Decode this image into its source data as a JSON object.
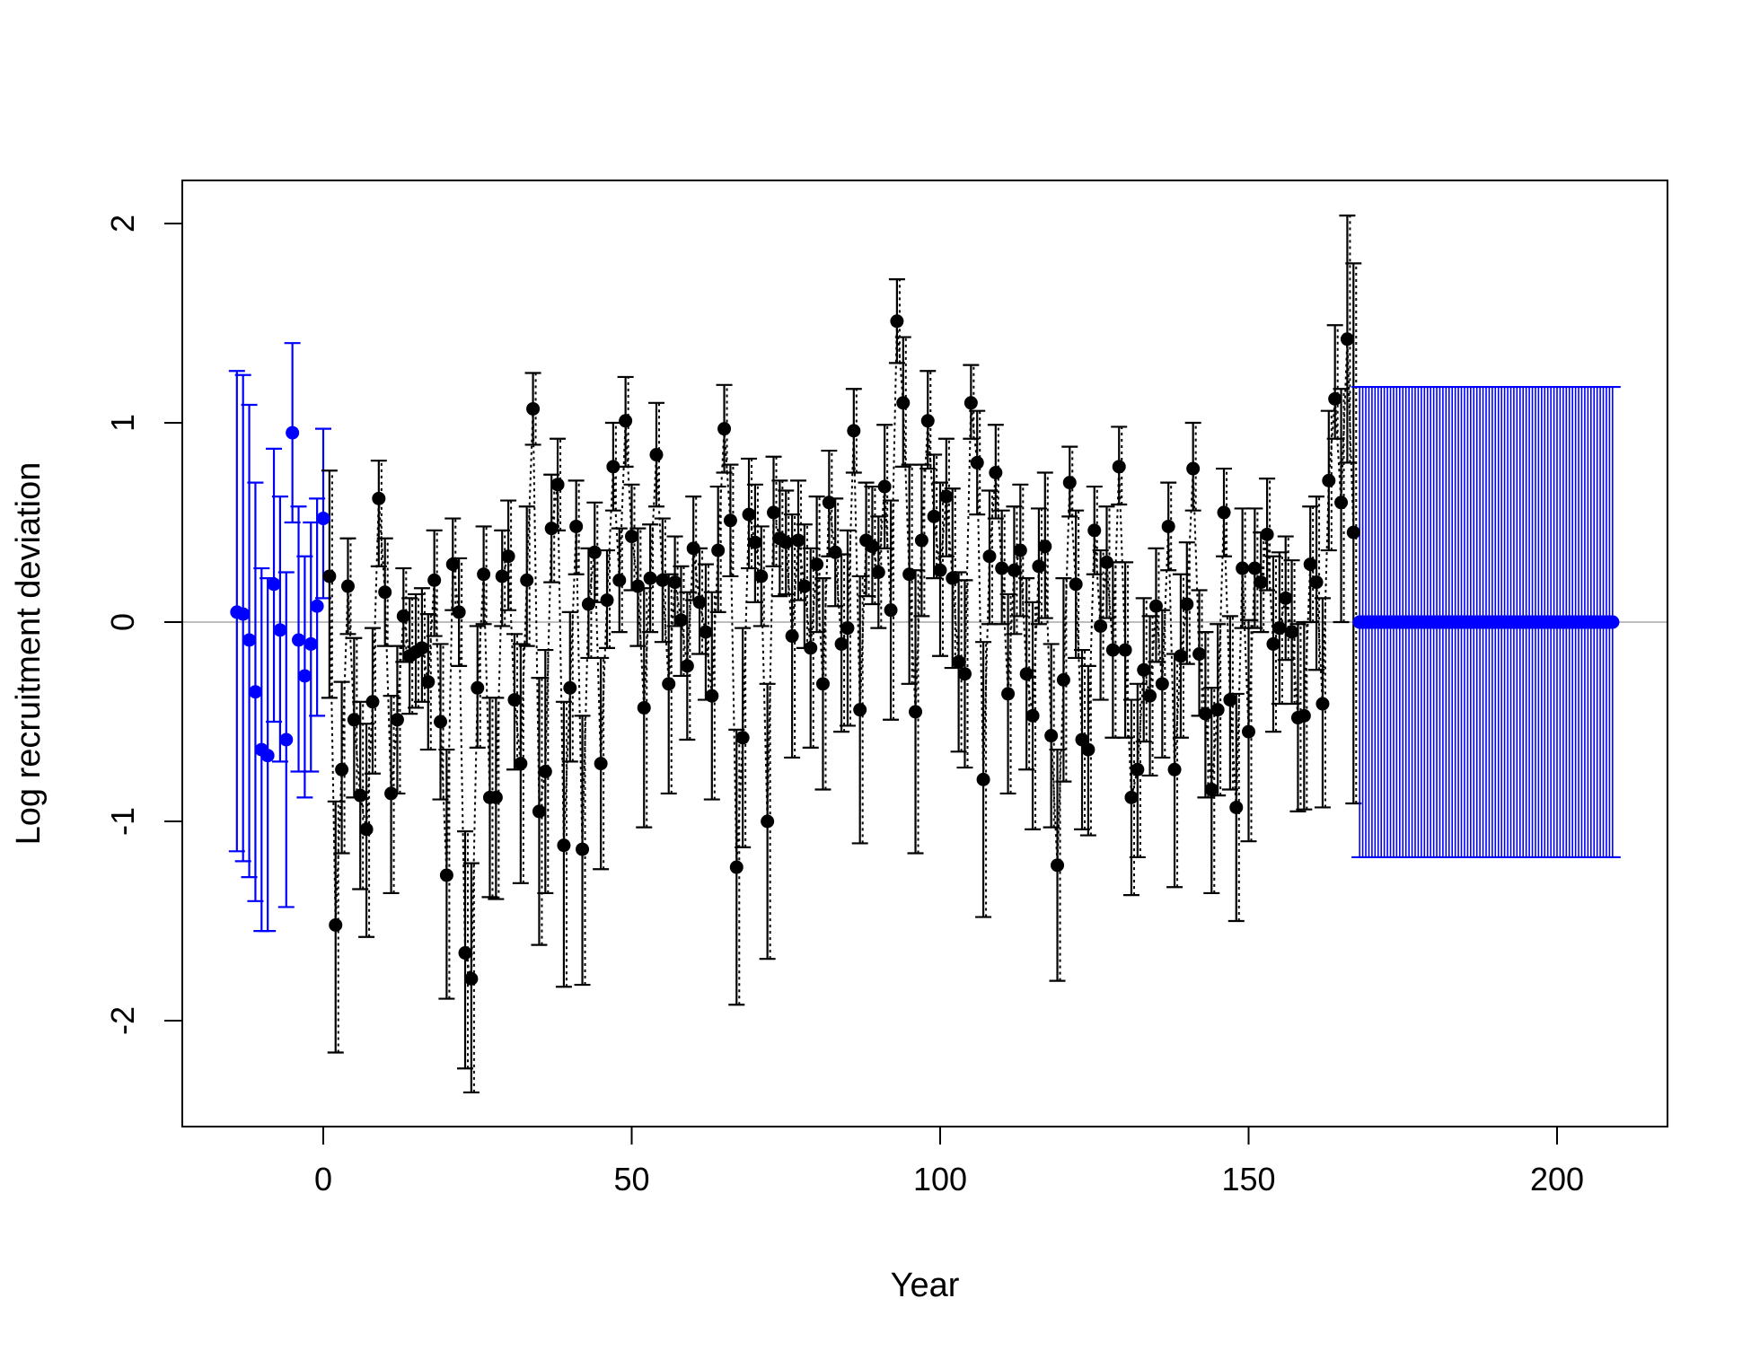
{
  "chart_data": {
    "type": "scatter",
    "title": "",
    "xlabel": "Year",
    "ylabel": "Log recruitment deviation",
    "xlim": [
      -23,
      218
    ],
    "ylim": [
      -2.5,
      2.2
    ],
    "xticks": [
      0,
      50,
      100,
      150,
      200
    ],
    "yticks": [
      -2,
      -1,
      0,
      1,
      2
    ],
    "xtick_labels": [
      "0",
      "50",
      "100",
      "150",
      "200"
    ],
    "ytick_labels": [
      "-2",
      "-1",
      "0",
      "1",
      "2"
    ],
    "grid": false,
    "legend": "none",
    "reference_line": {
      "y": 0,
      "color": "#bdbdbd"
    },
    "error_bars": "point estimate with upper and lower interval, capped",
    "series": [
      {
        "role": "early deviations",
        "color": "#0000ff",
        "x": [
          -14,
          -13,
          -12,
          -11,
          -10,
          -9,
          -8,
          -7,
          -6,
          -5,
          -4,
          -3,
          -2,
          -1,
          0
        ],
        "y": [
          0.05,
          0.04,
          -0.09,
          -0.35,
          -0.64,
          -0.67,
          0.19,
          -0.04,
          -0.59,
          0.95,
          -0.09,
          -0.27,
          -0.11,
          0.08,
          0.52
        ],
        "lower": [
          -1.15,
          -1.2,
          -1.28,
          -1.4,
          -1.55,
          -1.55,
          -0.5,
          -0.7,
          -1.43,
          0.5,
          -0.75,
          -0.88,
          -0.75,
          -0.47,
          0.12
        ],
        "upper": [
          1.26,
          1.24,
          1.09,
          0.7,
          0.27,
          0.22,
          0.87,
          0.63,
          0.25,
          1.4,
          0.58,
          0.33,
          0.5,
          0.62,
          0.97
        ]
      },
      {
        "role": "main deviations",
        "color": "#000000",
        "connect_dotted": true,
        "x": [
          1,
          2,
          3,
          4,
          5,
          6,
          7,
          8,
          9,
          10,
          11,
          12,
          13,
          14,
          15,
          16,
          17,
          18,
          19,
          20,
          21,
          22,
          23,
          24,
          25,
          26,
          27,
          28,
          29,
          30,
          31,
          32,
          33,
          34,
          35,
          36,
          37,
          38,
          39,
          40,
          41,
          42,
          43,
          44,
          45,
          46,
          47,
          48,
          49,
          50,
          51,
          52,
          53,
          54,
          55,
          56,
          57,
          58,
          59,
          60,
          61,
          62,
          63,
          64,
          65,
          66,
          67,
          68,
          69,
          70,
          71,
          72,
          73,
          74,
          75,
          76,
          77,
          78,
          79,
          80,
          81,
          82,
          83,
          84,
          85,
          86,
          87,
          88,
          89,
          90,
          91,
          92,
          93,
          94,
          95,
          96,
          97,
          98,
          99,
          100,
          101,
          102,
          103,
          104,
          105,
          106,
          107,
          108,
          109,
          110,
          111,
          112,
          113,
          114,
          115,
          116,
          117,
          118,
          119,
          120,
          121,
          122,
          123,
          124,
          125,
          126,
          127,
          128,
          129,
          130,
          131,
          132,
          133,
          134,
          135,
          136,
          137,
          138,
          139,
          140,
          141,
          142,
          143,
          144,
          145,
          146,
          147,
          148,
          149,
          150,
          151,
          152,
          153,
          154,
          155,
          156,
          157,
          158,
          159,
          160,
          161,
          162,
          163,
          164,
          165,
          166,
          167
        ],
        "y": [
          0.23,
          -1.52,
          -0.74,
          0.18,
          -0.49,
          -0.87,
          -1.04,
          -0.4,
          0.62,
          0.15,
          -0.86,
          -0.49,
          0.03,
          -0.17,
          -0.15,
          -0.13,
          -0.3,
          0.21,
          -0.5,
          -1.27,
          0.29,
          0.05,
          -1.66,
          -1.79,
          -0.33,
          0.24,
          -0.88,
          -0.88,
          0.23,
          0.33,
          -0.39,
          -0.71,
          0.21,
          1.07,
          -0.95,
          -0.75,
          0.47,
          0.69,
          -1.12,
          -0.33,
          0.48,
          -1.14,
          0.09,
          0.35,
          -0.71,
          0.11,
          0.78,
          0.21,
          1.01,
          0.43,
          0.18,
          -0.43,
          0.22,
          0.84,
          0.21,
          -0.31,
          0.2,
          0.01,
          -0.22,
          0.37,
          0.1,
          -0.05,
          -0.37,
          0.36,
          0.97,
          0.51,
          -1.23,
          -0.58,
          0.54,
          0.4,
          0.23,
          -1.0,
          0.55,
          0.42,
          0.4,
          -0.07,
          0.41,
          0.18,
          -0.13,
          0.29,
          -0.31,
          0.6,
          0.35,
          -0.11,
          -0.03,
          0.96,
          -0.44,
          0.41,
          0.38,
          0.25,
          0.68,
          0.06,
          1.51,
          1.1,
          0.24,
          -0.45,
          0.41,
          1.01,
          0.53,
          0.26,
          0.63,
          0.22,
          -0.2,
          -0.26,
          1.1,
          0.8,
          -0.79,
          0.33,
          0.75,
          0.27,
          -0.36,
          0.26,
          0.36,
          -0.26,
          -0.47,
          0.28,
          0.38,
          -0.57,
          -1.22,
          -0.29,
          0.7,
          0.19,
          -0.59,
          -0.64,
          0.46,
          -0.02,
          0.3,
          -0.14,
          0.78,
          -0.14,
          -0.88,
          -0.74,
          -0.24,
          -0.37,
          0.08,
          -0.31,
          0.48,
          -0.74,
          -0.17,
          0.09,
          0.77,
          -0.16,
          -0.46,
          -0.84,
          -0.44,
          0.55,
          -0.39,
          -0.93,
          0.27,
          -0.55,
          0.27,
          0.2,
          0.44,
          -0.11,
          -0.03,
          0.12,
          -0.05,
          -0.48,
          -0.47,
          0.29,
          0.2,
          -0.41,
          0.71,
          1.12,
          0.6,
          1.42,
          0.45
        ],
        "lower": [
          -0.38,
          -2.16,
          -1.16,
          -0.06,
          -0.88,
          -1.34,
          -1.58,
          -0.76,
          0.28,
          -0.12,
          -1.36,
          -0.86,
          -0.2,
          -0.46,
          -0.43,
          -0.4,
          -0.64,
          -0.07,
          -0.89,
          -1.89,
          0.06,
          -0.22,
          -2.24,
          -2.36,
          -0.63,
          -0.01,
          -1.38,
          -1.39,
          -0.02,
          0.06,
          -0.74,
          -1.31,
          -0.12,
          0.89,
          -1.62,
          -1.36,
          0.2,
          0.46,
          -1.83,
          -0.7,
          0.24,
          -1.82,
          -0.18,
          0.1,
          -1.24,
          -0.13,
          0.56,
          -0.05,
          0.78,
          0.16,
          -0.12,
          -1.03,
          -0.05,
          0.58,
          -0.1,
          -0.86,
          -0.02,
          -0.27,
          -0.59,
          0.11,
          -0.16,
          -0.39,
          -0.89,
          0.05,
          0.75,
          0.23,
          -1.92,
          -1.13,
          0.27,
          0.1,
          -0.02,
          -1.69,
          0.28,
          0.13,
          0.14,
          -0.68,
          0.11,
          -0.13,
          -0.63,
          -0.05,
          -0.84,
          0.33,
          0.08,
          -0.55,
          -0.52,
          0.75,
          -1.11,
          0.13,
          0.09,
          -0.03,
          0.37,
          -0.49,
          1.3,
          0.78,
          -0.31,
          -1.16,
          0.03,
          0.77,
          0.22,
          -0.17,
          0.33,
          -0.23,
          -0.65,
          -0.73,
          0.92,
          0.54,
          -1.48,
          -0.01,
          0.52,
          -0.01,
          -0.86,
          -0.06,
          0.03,
          -0.74,
          -1.04,
          -0.01,
          0.02,
          -1.03,
          -1.8,
          -0.8,
          0.53,
          -0.18,
          -1.04,
          -1.07,
          0.24,
          -0.39,
          0.02,
          -0.58,
          0.59,
          -0.58,
          -1.37,
          -1.18,
          -0.6,
          -0.77,
          -0.2,
          -0.68,
          0.26,
          -1.33,
          -0.58,
          -0.21,
          0.56,
          -0.47,
          -0.88,
          -1.36,
          -0.87,
          0.33,
          -0.84,
          -1.5,
          -0.03,
          -1.1,
          -0.03,
          -0.05,
          0.16,
          -0.55,
          -0.41,
          -0.19,
          -0.41,
          -0.95,
          -0.94,
          0.0,
          -0.24,
          -0.93,
          0.36,
          0.92,
          0.0,
          0.8,
          -0.91
        ],
        "upper": [
          0.76,
          -0.9,
          -0.3,
          0.42,
          -0.08,
          -0.4,
          -0.51,
          -0.03,
          0.81,
          0.42,
          -0.37,
          -0.12,
          0.27,
          0.12,
          0.14,
          0.17,
          0.04,
          0.46,
          -0.11,
          -0.64,
          0.52,
          0.32,
          -1.05,
          -1.21,
          -0.02,
          0.48,
          -0.38,
          -0.38,
          0.46,
          0.61,
          -0.06,
          -0.11,
          0.58,
          1.25,
          -0.28,
          -0.14,
          0.74,
          0.92,
          -0.4,
          0.05,
          0.71,
          -0.47,
          0.37,
          0.6,
          -0.18,
          0.36,
          1.0,
          0.47,
          1.23,
          0.69,
          0.47,
          0.17,
          0.49,
          1.1,
          0.52,
          0.24,
          0.43,
          0.28,
          0.15,
          0.63,
          0.37,
          0.29,
          0.15,
          0.68,
          1.19,
          0.79,
          -0.54,
          -0.03,
          0.82,
          0.69,
          0.48,
          -0.31,
          0.83,
          0.71,
          0.66,
          0.54,
          0.71,
          0.49,
          0.37,
          0.63,
          0.22,
          0.86,
          0.62,
          0.34,
          0.46,
          1.17,
          0.23,
          0.7,
          0.68,
          0.53,
          0.99,
          0.61,
          1.72,
          1.43,
          0.79,
          0.26,
          0.79,
          1.26,
          0.84,
          0.7,
          0.92,
          0.67,
          0.25,
          0.21,
          1.29,
          1.06,
          -0.1,
          0.66,
          0.99,
          0.56,
          0.14,
          0.58,
          0.69,
          0.22,
          0.1,
          0.57,
          0.75,
          -0.11,
          -0.64,
          0.22,
          0.88,
          0.56,
          -0.14,
          -0.22,
          0.68,
          0.36,
          0.58,
          0.3,
          0.98,
          0.3,
          -0.39,
          -0.31,
          0.12,
          0.03,
          0.37,
          0.06,
          0.7,
          -0.16,
          0.24,
          0.4,
          1.0,
          0.16,
          -0.05,
          -0.33,
          -0.01,
          0.77,
          0.03,
          -0.36,
          0.57,
          0.01,
          0.57,
          0.45,
          0.72,
          0.33,
          0.35,
          0.43,
          0.31,
          -0.01,
          0.0,
          0.58,
          0.63,
          0.12,
          1.06,
          1.49,
          1.17,
          2.04,
          1.8
        ]
      },
      {
        "role": "forecast deviations",
        "color": "#0000ff",
        "x_start": 168,
        "x_end": 209,
        "x_step": 0.5,
        "y": 0,
        "lower": -1.18,
        "upper": 1.18
      }
    ]
  }
}
